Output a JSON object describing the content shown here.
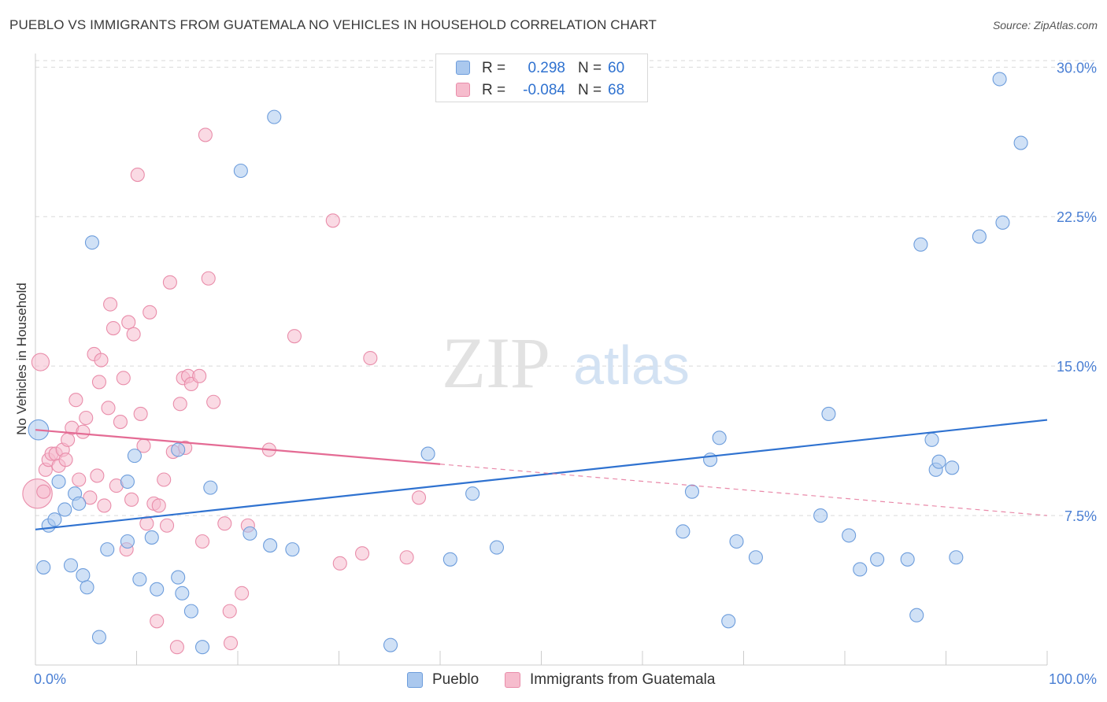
{
  "header": {
    "title": "PUEBLO VS IMMIGRANTS FROM GUATEMALA NO VEHICLES IN HOUSEHOLD CORRELATION CHART",
    "source": "Source: ZipAtlas.com"
  },
  "watermark": {
    "zip": "ZIP",
    "atlas": "atlas"
  },
  "legend": {
    "rows": [
      {
        "r_label": "R =",
        "r_value": "0.298",
        "n_label": "N =",
        "n_value": "60"
      },
      {
        "r_label": "R =",
        "r_value": "-0.084",
        "n_label": "N =",
        "n_value": "68"
      }
    ]
  },
  "colors": {
    "blue_fill": "#aac8ee",
    "blue_stroke": "#6d9ddc",
    "blue_line": "#2f72d0",
    "pink_fill": "#f6bccd",
    "pink_stroke": "#e98daa",
    "pink_line": "#e46b94",
    "axis_text": "#4a7fd4",
    "grid": "#d9d9d9"
  },
  "chart_data": {
    "type": "scatter",
    "title": "PUEBLO VS IMMIGRANTS FROM GUATEMALA NO VEHICLES IN HOUSEHOLD CORRELATION CHART",
    "xlabel": "",
    "ylabel": "No Vehicles in Household",
    "xlim": [
      0,
      100
    ],
    "ylim": [
      0,
      31
    ],
    "x_tick_labels": [
      "0.0%",
      "100.0%"
    ],
    "y_ticks": [
      7.5,
      15.0,
      22.5,
      30.0
    ],
    "y_tick_labels": [
      "7.5%",
      "15.0%",
      "22.5%",
      "30.0%"
    ],
    "grid": "horizontal dashed",
    "legend_position": "top-center",
    "series": [
      {
        "name": "Pueblo",
        "color": "blue",
        "r": 0.298,
        "n": 60,
        "trend": {
          "x": [
            0,
            100
          ],
          "y": [
            6.8,
            12.3
          ],
          "dashed_from": null
        },
        "points": [
          [
            0.3,
            11.8,
            1.5
          ],
          [
            0.8,
            4.9,
            1
          ],
          [
            1.3,
            7.0,
            1
          ],
          [
            1.9,
            7.3,
            1
          ],
          [
            2.3,
            9.2,
            1
          ],
          [
            2.9,
            7.8,
            1
          ],
          [
            3.5,
            5.0,
            1
          ],
          [
            3.9,
            8.6,
            1
          ],
          [
            4.3,
            8.1,
            1
          ],
          [
            4.7,
            4.5,
            1
          ],
          [
            5.1,
            3.9,
            1
          ],
          [
            5.6,
            21.2,
            1
          ],
          [
            6.3,
            1.4,
            1
          ],
          [
            7.1,
            5.8,
            1
          ],
          [
            9.1,
            9.2,
            1
          ],
          [
            9.1,
            6.2,
            1
          ],
          [
            9.8,
            10.5,
            1
          ],
          [
            10.3,
            4.3,
            1
          ],
          [
            11.5,
            6.4,
            1
          ],
          [
            12.0,
            3.8,
            1
          ],
          [
            14.1,
            4.4,
            1
          ],
          [
            14.1,
            10.8,
            1
          ],
          [
            14.5,
            3.6,
            1
          ],
          [
            15.4,
            2.7,
            1
          ],
          [
            16.5,
            0.9,
            1
          ],
          [
            17.3,
            8.9,
            1
          ],
          [
            20.3,
            24.8,
            1
          ],
          [
            21.2,
            6.6,
            1
          ],
          [
            23.2,
            6.0,
            1
          ],
          [
            23.6,
            27.5,
            1
          ],
          [
            25.4,
            5.8,
            1
          ],
          [
            35.1,
            1.0,
            1
          ],
          [
            38.8,
            10.6,
            1
          ],
          [
            41.0,
            5.3,
            1
          ],
          [
            43.2,
            8.6,
            1
          ],
          [
            45.6,
            5.9,
            1
          ],
          [
            64.0,
            6.7,
            1
          ],
          [
            64.9,
            8.7,
            1
          ],
          [
            66.7,
            10.3,
            1
          ],
          [
            67.6,
            11.4,
            1
          ],
          [
            68.5,
            2.2,
            1
          ],
          [
            69.3,
            6.2,
            1
          ],
          [
            71.2,
            5.4,
            1
          ],
          [
            77.6,
            7.5,
            1
          ],
          [
            78.4,
            12.6,
            1
          ],
          [
            80.4,
            6.5,
            1
          ],
          [
            81.5,
            4.8,
            1
          ],
          [
            83.2,
            5.3,
            1
          ],
          [
            86.2,
            5.3,
            1
          ],
          [
            87.1,
            2.5,
            1
          ],
          [
            87.5,
            21.1,
            1
          ],
          [
            88.6,
            11.3,
            1
          ],
          [
            89.0,
            9.8,
            1
          ],
          [
            89.3,
            10.2,
            1
          ],
          [
            90.6,
            9.9,
            1
          ],
          [
            91.0,
            5.4,
            1
          ],
          [
            93.3,
            21.5,
            1
          ],
          [
            95.3,
            29.4,
            1
          ],
          [
            95.6,
            22.2,
            1
          ],
          [
            97.4,
            26.2,
            1
          ]
        ]
      },
      {
        "name": "Immigrants from Guatemala",
        "color": "pink",
        "r": -0.084,
        "n": 68,
        "trend": {
          "x": [
            0,
            100
          ],
          "y": [
            11.8,
            7.5
          ],
          "dashed_from": 40
        },
        "points": [
          [
            0.2,
            8.6,
            2.2
          ],
          [
            0.5,
            15.2,
            1.3
          ],
          [
            0.8,
            8.7,
            1
          ],
          [
            1.0,
            9.8,
            1
          ],
          [
            1.3,
            10.3,
            1
          ],
          [
            1.6,
            10.6,
            1
          ],
          [
            2.0,
            10.6,
            1
          ],
          [
            2.3,
            10.0,
            1
          ],
          [
            2.7,
            10.8,
            1
          ],
          [
            3.0,
            10.3,
            1
          ],
          [
            3.2,
            11.3,
            1
          ],
          [
            3.6,
            11.9,
            1
          ],
          [
            4.0,
            13.3,
            1
          ],
          [
            4.3,
            9.3,
            1
          ],
          [
            4.7,
            11.7,
            1
          ],
          [
            5.0,
            12.4,
            1
          ],
          [
            5.4,
            8.4,
            1
          ],
          [
            5.8,
            15.6,
            1
          ],
          [
            6.1,
            9.5,
            1
          ],
          [
            6.3,
            14.2,
            1
          ],
          [
            6.5,
            15.3,
            1
          ],
          [
            6.8,
            8.0,
            1
          ],
          [
            7.2,
            12.9,
            1
          ],
          [
            7.4,
            18.1,
            1
          ],
          [
            7.7,
            16.9,
            1
          ],
          [
            8.0,
            9.0,
            1
          ],
          [
            8.4,
            12.2,
            1
          ],
          [
            8.7,
            14.4,
            1
          ],
          [
            9.0,
            5.8,
            1
          ],
          [
            9.2,
            17.2,
            1
          ],
          [
            9.5,
            8.3,
            1
          ],
          [
            9.7,
            16.6,
            1
          ],
          [
            10.1,
            24.6,
            1
          ],
          [
            10.4,
            12.6,
            1
          ],
          [
            10.7,
            11.0,
            1
          ],
          [
            11.0,
            7.1,
            1
          ],
          [
            11.3,
            17.7,
            1
          ],
          [
            11.7,
            8.1,
            1
          ],
          [
            12.0,
            2.2,
            1
          ],
          [
            12.7,
            9.3,
            1
          ],
          [
            13.0,
            7.0,
            1
          ],
          [
            13.3,
            19.2,
            1
          ],
          [
            13.6,
            10.7,
            1
          ],
          [
            14.0,
            0.9,
            1
          ],
          [
            14.3,
            13.1,
            1
          ],
          [
            14.6,
            14.4,
            1
          ],
          [
            14.8,
            10.9,
            1
          ],
          [
            15.1,
            14.5,
            1
          ],
          [
            15.4,
            14.1,
            1
          ],
          [
            16.2,
            14.5,
            1
          ],
          [
            16.5,
            6.2,
            1
          ],
          [
            16.8,
            26.6,
            1
          ],
          [
            17.1,
            19.4,
            1
          ],
          [
            17.6,
            13.2,
            1
          ],
          [
            18.7,
            7.1,
            1
          ],
          [
            19.2,
            2.7,
            1
          ],
          [
            19.3,
            1.1,
            1
          ],
          [
            20.4,
            3.6,
            1
          ],
          [
            21.0,
            7.0,
            1
          ],
          [
            23.1,
            10.8,
            1
          ],
          [
            25.6,
            16.5,
            1
          ],
          [
            29.4,
            22.3,
            1
          ],
          [
            30.1,
            5.1,
            1
          ],
          [
            32.3,
            5.6,
            1
          ],
          [
            33.1,
            15.4,
            1
          ],
          [
            36.7,
            5.4,
            1
          ],
          [
            37.9,
            8.4,
            1
          ],
          [
            12.2,
            8.0,
            1
          ]
        ]
      }
    ]
  },
  "bottom_legend": {
    "items": [
      {
        "label": "Pueblo"
      },
      {
        "label": "Immigrants from Guatemala"
      }
    ]
  }
}
